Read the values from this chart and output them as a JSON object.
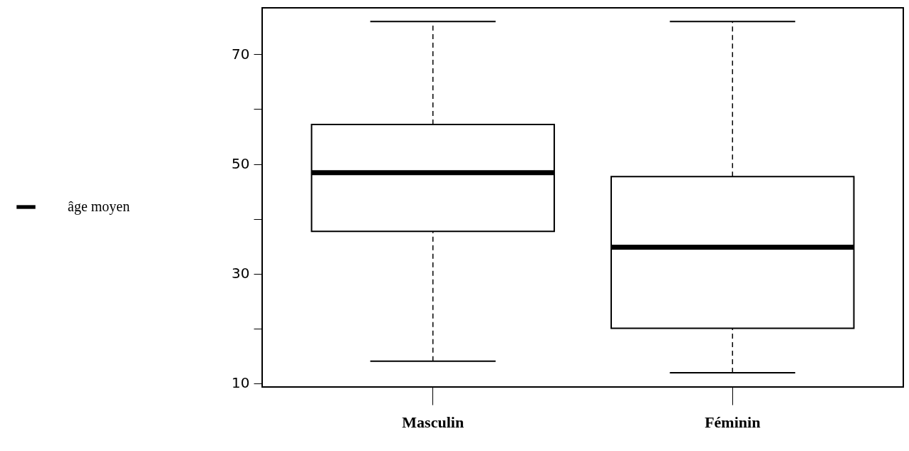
{
  "chart_data": {
    "type": "box",
    "categories": [
      "Masculin",
      "Féminin"
    ],
    "series": [
      {
        "name": "âge moyen",
        "color": "#000000",
        "boxes": [
          {
            "low": 14,
            "q1": 37.7,
            "median": 48.4,
            "q3": 57.2,
            "high": 76
          },
          {
            "low": 11.9,
            "q1": 20,
            "median": 34.8,
            "q3": 47.7,
            "high": 76
          }
        ]
      }
    ],
    "ylim": [
      9.3,
      78.5
    ],
    "yticks": [
      10,
      {
        "value": 20,
        "label": null
      },
      30,
      {
        "value": 40,
        "label": null
      },
      50,
      {
        "value": 60,
        "label": null
      },
      70
    ],
    "grid": false,
    "legend": "left",
    "line_style": "dashed"
  }
}
